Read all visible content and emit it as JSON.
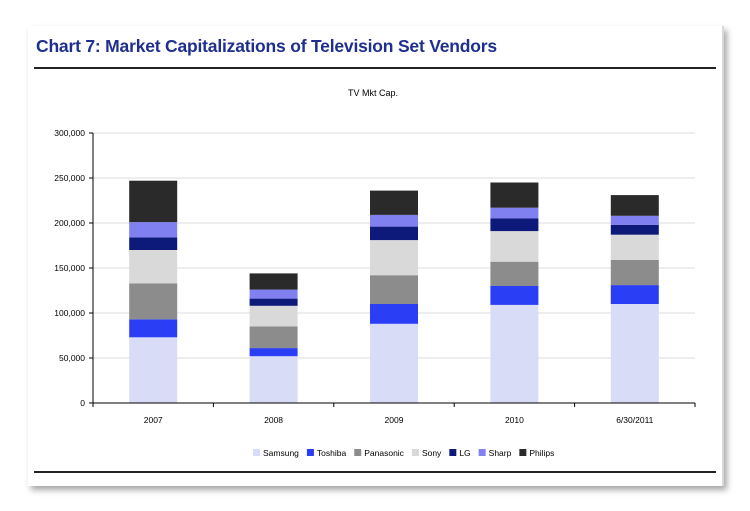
{
  "page": {
    "heading": "Chart 7: Market Capitalizations of Television Set Vendors"
  },
  "chart_data": {
    "type": "bar",
    "stacked": true,
    "title": "TV Mkt Cap.",
    "xlabel": "",
    "ylabel": "",
    "ylim": [
      0,
      300000
    ],
    "yticks": [
      0,
      50000,
      100000,
      150000,
      200000,
      250000,
      300000
    ],
    "ytick_labels": [
      "0",
      "50,000",
      "100,000",
      "150,000",
      "200,000",
      "250,000",
      "300,000"
    ],
    "categories": [
      "2007",
      "2008",
      "2009",
      "2010",
      "6/30/2011"
    ],
    "legend_position": "bottom",
    "series": [
      {
        "name": "Samsung",
        "color": "#d9dcf7",
        "values": [
          73000,
          52000,
          88000,
          109000,
          110000
        ]
      },
      {
        "name": "Toshiba",
        "color": "#2a3ef5",
        "values": [
          20000,
          9000,
          22000,
          21000,
          21000
        ]
      },
      {
        "name": "Panasonic",
        "color": "#8c8c8c",
        "values": [
          40000,
          24000,
          32000,
          27000,
          28000
        ]
      },
      {
        "name": "Sony",
        "color": "#d9d9d9",
        "values": [
          37000,
          23000,
          39000,
          34000,
          28000
        ]
      },
      {
        "name": "LG",
        "color": "#0d1a7a",
        "values": [
          14000,
          8000,
          15000,
          14000,
          11000
        ]
      },
      {
        "name": "Sharp",
        "color": "#8080f0",
        "values": [
          17000,
          10000,
          13000,
          12000,
          10000
        ]
      },
      {
        "name": "Philips",
        "color": "#2a2a2a",
        "values": [
          46000,
          18000,
          27000,
          28000,
          23000
        ]
      }
    ]
  }
}
